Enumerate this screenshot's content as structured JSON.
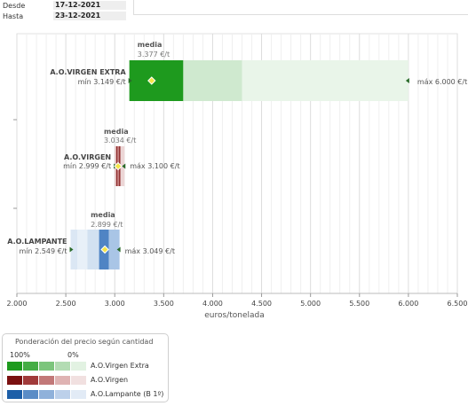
{
  "header": {
    "desde_label": "Desde",
    "desde_value": "17-12-2021",
    "hasta_label": "Hasta",
    "hasta_value": "23-12-2021"
  },
  "chart_data": {
    "type": "bar",
    "xlabel": "euros/tonelada",
    "xlim": [
      2000,
      6500
    ],
    "xticks": [
      2000,
      2500,
      3000,
      3500,
      4000,
      4500,
      5000,
      5500,
      6000,
      6500
    ],
    "xtick_labels": [
      "2.000",
      "2.500",
      "3.000",
      "3.500",
      "4.000",
      "4.500",
      "5.000",
      "5.500",
      "6.000",
      "6.500"
    ],
    "grid": true,
    "series": [
      {
        "name": "A.O.VIRGEN EXTRA",
        "min": 3149,
        "min_label": "mín 3.149 €/t",
        "max": 6000,
        "max_label": "máx 6.000 €/t",
        "media": 3377,
        "media_title": "media",
        "media_label": "3.377 €/t",
        "segments": [
          {
            "from": 3149,
            "to": 3700,
            "color": "#1e9a1e"
          },
          {
            "from": 3700,
            "to": 4300,
            "color": "#cfe9cf"
          },
          {
            "from": 4300,
            "to": 6000,
            "color": "#e9f5e9"
          }
        ]
      },
      {
        "name": "A.O.VIRGEN",
        "min": 2999,
        "min_label": "mín 2.999 €/t",
        "max": 3100,
        "max_label": "máx 3.100 €/t",
        "media": 3034,
        "media_title": "media",
        "media_label": "3.034 €/t",
        "segments": [
          {
            "from": 2999,
            "to": 3015,
            "color": "#e7c9c9"
          },
          {
            "from": 3015,
            "to": 3028,
            "color": "#8b2525"
          },
          {
            "from": 3028,
            "to": 3044,
            "color": "#c47d7d"
          },
          {
            "from": 3044,
            "to": 3058,
            "color": "#8b2525"
          },
          {
            "from": 3058,
            "to": 3100,
            "color": "#ecd6d6"
          }
        ]
      },
      {
        "name": "A.O.LAMPANTE",
        "min": 2549,
        "min_label": "mín 2.549 €/t",
        "max": 3049,
        "max_label": "máx 3.049 €/t",
        "media": 2899,
        "media_title": "media",
        "media_label": "2.899 €/t",
        "segments": [
          {
            "from": 2549,
            "to": 2620,
            "color": "#dbe7f4"
          },
          {
            "from": 2620,
            "to": 2720,
            "color": "#e8f0f8"
          },
          {
            "from": 2720,
            "to": 2840,
            "color": "#d2e1f1"
          },
          {
            "from": 2840,
            "to": 2940,
            "color": "#4f84c4"
          },
          {
            "from": 2940,
            "to": 3049,
            "color": "#a9c5e6"
          }
        ]
      }
    ],
    "legend": {
      "title": "Ponderación del precio según cantidad",
      "pct_high": "100%",
      "pct_low": "0%",
      "placement": "bottom-left",
      "rows": [
        {
          "label": "A.O.Virgen Extra",
          "colors": [
            "#1e9a1e",
            "#44ad44",
            "#7cc57c",
            "#b3dcb3",
            "#e2f2e2"
          ]
        },
        {
          "label": "A.O.Virgen",
          "colors": [
            "#7a1010",
            "#a13a3a",
            "#c27878",
            "#dfb3b3",
            "#f1e0e0"
          ]
        },
        {
          "label": "A.O.Lampante (B 1º)",
          "colors": [
            "#1d5fa8",
            "#5a8cc6",
            "#8fb1da",
            "#bcd0ea",
            "#e2ebf6"
          ]
        }
      ]
    }
  }
}
